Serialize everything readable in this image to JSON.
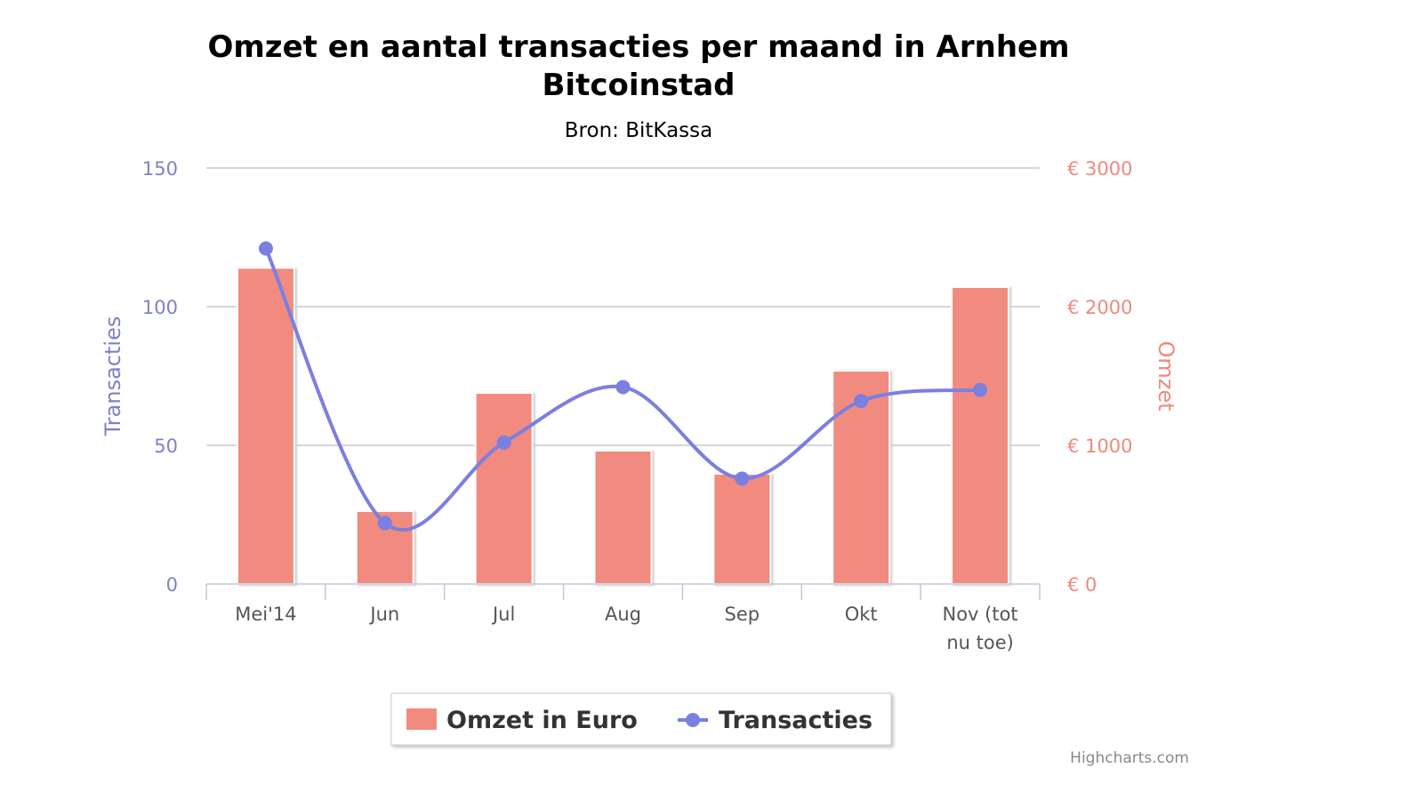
{
  "chart_data": {
    "type": "bar+line",
    "title_line1": "Omzet en aantal transacties per maand in Arnhem",
    "title_line2": "Bitcoinstad",
    "subtitle": "Bron: BitKassa",
    "categories": [
      [
        "Mei'14"
      ],
      [
        "Jun"
      ],
      [
        "Jul"
      ],
      [
        "Aug"
      ],
      [
        "Sep"
      ],
      [
        "Okt"
      ],
      [
        "Nov (tot",
        "nu toe)"
      ]
    ],
    "y_left": {
      "label": "Transacties",
      "range": [
        0,
        150
      ],
      "ticks": [
        "0",
        "50",
        "100",
        "150"
      ],
      "tick_values": [
        0,
        50,
        100,
        150
      ],
      "color": "#7b7fe0"
    },
    "y_right": {
      "label": "Omzet",
      "range": [
        0,
        3000
      ],
      "ticks": [
        "€ 0",
        "€ 1000",
        "€ 2000",
        "€ 3000"
      ],
      "tick_values": [
        0,
        1000,
        2000,
        3000
      ],
      "color": "#f28b7f"
    },
    "grid": true,
    "series": [
      {
        "name": "Omzet in Euro",
        "type": "column",
        "axis": "right",
        "color": "#f28b7f",
        "values": [
          2280,
          526,
          1378,
          962,
          795,
          1538,
          2141
        ]
      },
      {
        "name": "Transacties",
        "type": "spline",
        "axis": "left",
        "color": "#7b7fe0",
        "values": [
          121,
          22,
          51,
          71,
          38,
          66,
          70
        ]
      }
    ],
    "legend_position": "bottom-center",
    "credit": "Highcharts.com"
  }
}
